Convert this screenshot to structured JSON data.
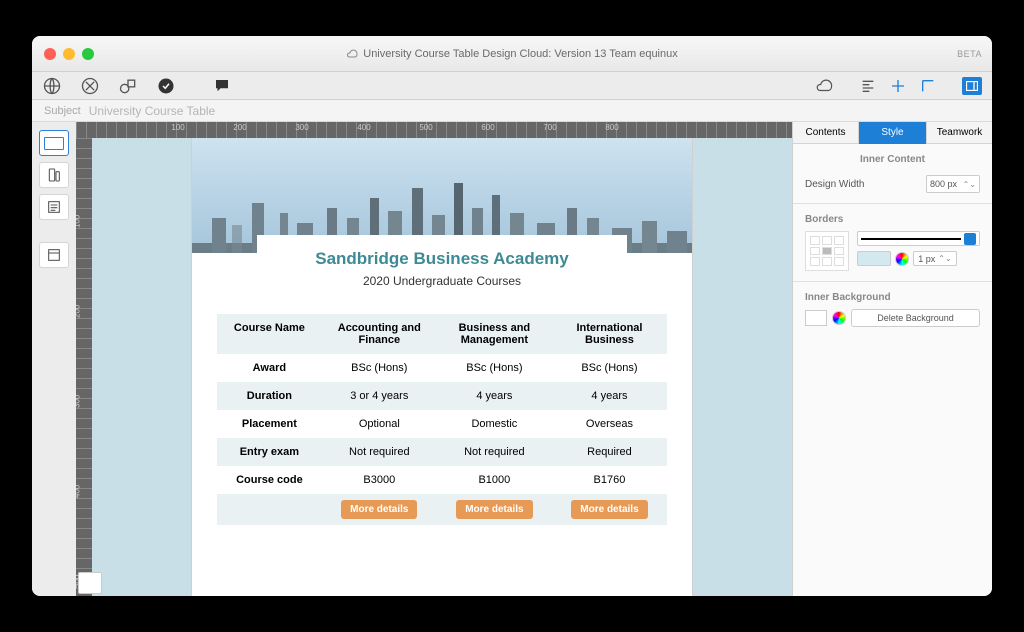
{
  "titlebar": {
    "title": "University Course Table Design Cloud: Version 13 Team equinux",
    "beta": "BETA"
  },
  "subject": {
    "label": "Subject",
    "value": "University Course Table"
  },
  "ruler_h": [
    "100",
    "200",
    "300",
    "400",
    "500",
    "600",
    "700",
    "800"
  ],
  "ruler_v": [
    "100",
    "200",
    "300",
    "400",
    "500"
  ],
  "page": {
    "title": "Sandbridge Business Academy",
    "subtitle": "2020 Undergraduate Courses",
    "title_color": "#3d8a95",
    "table": {
      "header": [
        "Course Name",
        "Accounting and Finance",
        "Business and Management",
        "International Business"
      ],
      "rows": [
        {
          "label": "Award",
          "cells": [
            "BSc (Hons)",
            "BSc (Hons)",
            "BSc (Hons)"
          ]
        },
        {
          "label": "Duration",
          "cells": [
            "3 or 4 years",
            "4 years",
            "4 years"
          ]
        },
        {
          "label": "Placement",
          "cells": [
            "Optional",
            "Domestic",
            "Overseas"
          ]
        },
        {
          "label": "Entry exam",
          "cells": [
            "Not required",
            "Not required",
            "Required"
          ]
        },
        {
          "label": "Course code",
          "cells": [
            "B3000",
            "B1000",
            "B1760"
          ]
        }
      ],
      "more_label": "More details",
      "stripe_color": "#e9f1f2",
      "button_color": "#e79a56"
    }
  },
  "inspector": {
    "tabs": [
      "Contents",
      "Style",
      "Teamwork"
    ],
    "active_tab": 1,
    "heading": "Inner Content",
    "design_width": {
      "label": "Design Width",
      "value": "800 px"
    },
    "borders": {
      "label": "Borders",
      "width": "1 px",
      "swatch": "#d3e8ef"
    },
    "inner_bg": {
      "label": "Inner Background",
      "delete": "Delete Background"
    }
  }
}
